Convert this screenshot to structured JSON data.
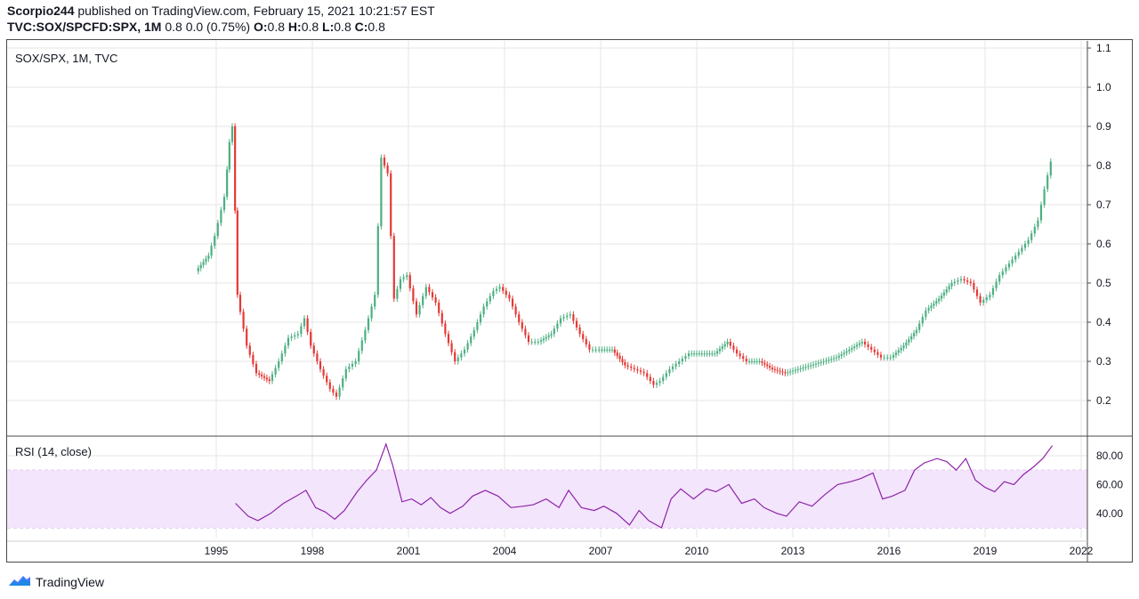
{
  "header": {
    "author": "Scorpio244",
    "published_text": " published on TradingView.com, February 15, 2021 10:21:57 EST",
    "symbol": "TVC:SOX/SPCFD:SPX, 1M",
    "change": " 0.8 0.0 (0.75%) ",
    "o_label": "O:",
    "o_val": "0.8",
    "h_label": "H:",
    "h_val": "0.8",
    "l_label": "L:",
    "l_val": "0.8",
    "c_label": "C:",
    "c_val": "0.8"
  },
  "footer": {
    "brand": "TradingView",
    "logo_icon": "tradingview-logo-icon"
  },
  "colors": {
    "up": "#4caf82",
    "down": "#e53935",
    "rsi": "#8e24aa",
    "rsi_band": "#f3e5fb",
    "grid": "#e6e6e6"
  },
  "chart_data": [
    {
      "type": "candlestick",
      "title": "SOX/SPX, 1M, TVC",
      "ylim": [
        0.15,
        1.1
      ],
      "y_ticks": [
        "1.1",
        "1.0",
        "0.9",
        "0.8",
        "0.7",
        "0.6",
        "0.5",
        "0.4",
        "0.3",
        "0.2"
      ],
      "x_ticks": [
        "1995",
        "1998",
        "2001",
        "2004",
        "2007",
        "2010",
        "2013",
        "2016",
        "2019",
        "2022"
      ],
      "grid": true,
      "series": [
        {
          "name": "SOX/SPX",
          "x": [
            1994.4,
            1994.8,
            1995.0,
            1995.3,
            1995.45,
            1995.55,
            1995.7,
            1996.0,
            1996.3,
            1996.7,
            1997.0,
            1997.3,
            1997.6,
            1997.8,
            1998.0,
            1998.3,
            1998.6,
            1998.8,
            1999.1,
            1999.4,
            1999.7,
            2000.0,
            2000.2,
            2000.4,
            2000.6,
            2000.8,
            2001.0,
            2001.3,
            2001.6,
            2001.9,
            2002.2,
            2002.5,
            2002.8,
            2003.1,
            2003.4,
            2003.7,
            2003.9,
            2004.2,
            2004.5,
            2004.8,
            2005.1,
            2005.5,
            2005.8,
            2006.1,
            2006.4,
            2006.7,
            2007.0,
            2007.4,
            2007.8,
            2008.1,
            2008.4,
            2008.7,
            2008.9,
            2009.2,
            2009.5,
            2009.8,
            2010.2,
            2010.6,
            2011.0,
            2011.3,
            2011.6,
            2012.0,
            2012.4,
            2012.8,
            2013.2,
            2013.6,
            2014.0,
            2014.4,
            2014.8,
            2015.2,
            2015.5,
            2015.8,
            2016.1,
            2016.5,
            2016.9,
            2017.2,
            2017.6,
            2018.0,
            2018.3,
            2018.6,
            2018.9,
            2019.2,
            2019.5,
            2019.8,
            2020.1,
            2020.4,
            2020.7,
            2020.9,
            2021.1
          ],
          "values": [
            0.53,
            0.57,
            0.62,
            0.72,
            0.86,
            0.9,
            0.47,
            0.34,
            0.27,
            0.25,
            0.3,
            0.36,
            0.37,
            0.41,
            0.34,
            0.28,
            0.23,
            0.21,
            0.28,
            0.3,
            0.38,
            0.47,
            0.82,
            0.78,
            0.46,
            0.51,
            0.52,
            0.42,
            0.49,
            0.45,
            0.37,
            0.3,
            0.33,
            0.38,
            0.44,
            0.48,
            0.49,
            0.46,
            0.4,
            0.35,
            0.35,
            0.37,
            0.41,
            0.42,
            0.37,
            0.33,
            0.33,
            0.33,
            0.29,
            0.28,
            0.27,
            0.24,
            0.25,
            0.28,
            0.3,
            0.32,
            0.32,
            0.32,
            0.35,
            0.32,
            0.3,
            0.3,
            0.28,
            0.27,
            0.28,
            0.29,
            0.3,
            0.31,
            0.33,
            0.35,
            0.33,
            0.31,
            0.31,
            0.34,
            0.38,
            0.43,
            0.46,
            0.5,
            0.51,
            0.5,
            0.45,
            0.47,
            0.52,
            0.55,
            0.58,
            0.61,
            0.66,
            0.74,
            0.81
          ]
        }
      ]
    },
    {
      "type": "line",
      "title": "RSI (14, close)",
      "ylim": [
        25,
        95
      ],
      "y_ticks": [
        "80.00",
        "60.00",
        "40.00"
      ],
      "band": [
        30,
        70
      ],
      "series": [
        {
          "name": "RSI",
          "x": [
            1995.6,
            1996.0,
            1996.3,
            1996.7,
            1997.1,
            1997.5,
            1997.8,
            1998.1,
            1998.4,
            1998.7,
            1999.0,
            1999.4,
            1999.7,
            2000.0,
            2000.3,
            2000.5,
            2000.8,
            2001.1,
            2001.4,
            2001.7,
            2002.0,
            2002.3,
            2002.7,
            2003.0,
            2003.4,
            2003.8,
            2004.2,
            2004.6,
            2004.9,
            2005.3,
            2005.7,
            2006.0,
            2006.4,
            2006.8,
            2007.1,
            2007.5,
            2007.9,
            2008.2,
            2008.5,
            2008.9,
            2009.2,
            2009.5,
            2009.9,
            2010.3,
            2010.6,
            2011.0,
            2011.4,
            2011.8,
            2012.1,
            2012.5,
            2012.8,
            2013.2,
            2013.6,
            2014.0,
            2014.4,
            2014.8,
            2015.1,
            2015.5,
            2015.8,
            2016.1,
            2016.5,
            2016.8,
            2017.1,
            2017.5,
            2017.8,
            2018.1,
            2018.4,
            2018.7,
            2019.0,
            2019.3,
            2019.6,
            2019.9,
            2020.2,
            2020.5,
            2020.8,
            2021.1
          ],
          "values": [
            47,
            38,
            35,
            40,
            47,
            52,
            56,
            44,
            41,
            36,
            42,
            55,
            63,
            70,
            88,
            74,
            48,
            50,
            46,
            51,
            44,
            40,
            45,
            52,
            56,
            52,
            44,
            45,
            46,
            50,
            44,
            56,
            44,
            42,
            45,
            40,
            32,
            42,
            35,
            30,
            50,
            57,
            50,
            57,
            55,
            60,
            47,
            50,
            44,
            40,
            38,
            48,
            45,
            53,
            60,
            62,
            64,
            68,
            50,
            52,
            56,
            70,
            75,
            78,
            76,
            70,
            78,
            63,
            58,
            55,
            62,
            60,
            67,
            72,
            78,
            87
          ]
        }
      ]
    }
  ]
}
